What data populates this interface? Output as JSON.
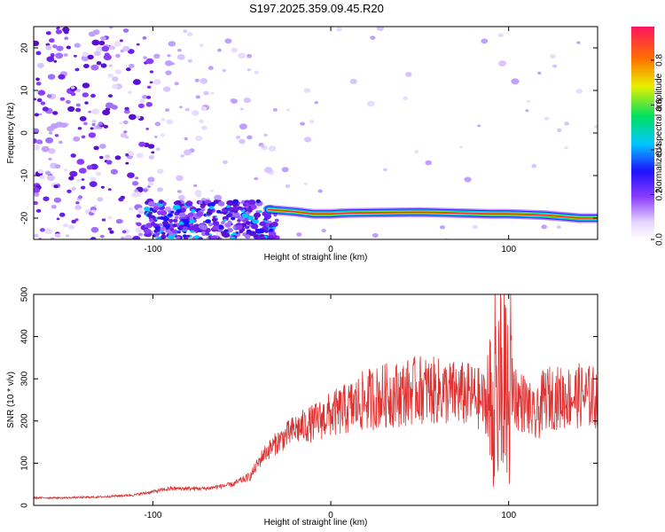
{
  "title": "S197.2025.359.09.45.R20",
  "chart_data": [
    {
      "type": "heatmap",
      "name": "spectrogram",
      "xlabel": "Height of straight line (km)",
      "ylabel": "Frequency (Hz)",
      "xlim": [
        -167,
        150
      ],
      "ylim": [
        -25,
        25
      ],
      "xticks": [
        -100,
        0,
        100
      ],
      "xtick_labels": [
        "-100",
        "0",
        "100"
      ],
      "yticks": [
        -20,
        -10,
        0,
        10,
        20
      ],
      "ytick_labels": [
        "-20",
        "-10",
        "0",
        "10",
        "20"
      ],
      "colorbar": {
        "label": "Normalized spectral amplitude",
        "range": [
          0,
          0.95
        ],
        "ticks": [
          0.0,
          0.2,
          0.4,
          0.6,
          0.8
        ],
        "tick_labels": [
          "0.0",
          "0.2",
          "0.4",
          "0.6",
          "0.8"
        ]
      },
      "ridge": {
        "x": [
          -35,
          -20,
          -10,
          0,
          10,
          30,
          50,
          70,
          90,
          100,
          120,
          140,
          150
        ],
        "y": [
          -18,
          -18.5,
          -19,
          -19,
          -18.8,
          -18.7,
          -18.6,
          -18.8,
          -19,
          -19,
          -19.3,
          -20,
          -20
        ]
      }
    },
    {
      "type": "line",
      "name": "snr",
      "xlabel": "Height of straight line (km)",
      "ylabel": "SNR (10 * v/v)",
      "xlim": [
        -167,
        150
      ],
      "ylim": [
        0,
        500
      ],
      "xticks": [
        -100,
        0,
        100
      ],
      "xtick_labels": [
        "-100",
        "0",
        "100"
      ],
      "yticks": [
        0,
        100,
        200,
        300,
        400,
        500
      ],
      "ytick_labels": [
        "0",
        "100",
        "200",
        "300",
        "400",
        "500"
      ],
      "series": [
        {
          "name": "SNR",
          "color": "#e03030",
          "x": [
            -167,
            -150,
            -130,
            -110,
            -90,
            -70,
            -55,
            -45,
            -38,
            -30,
            -20,
            -10,
            0,
            10,
            20,
            30,
            40,
            50,
            60,
            70,
            80,
            88,
            92,
            95,
            98,
            101,
            105,
            110,
            115,
            120,
            130,
            140,
            150
          ],
          "y": [
            18,
            18,
            20,
            25,
            40,
            40,
            50,
            70,
            120,
            150,
            180,
            195,
            215,
            230,
            250,
            260,
            265,
            275,
            270,
            265,
            260,
            240,
            200,
            300,
            120,
            300,
            250,
            240,
            200,
            255,
            255,
            260,
            255
          ]
        }
      ]
    }
  ]
}
